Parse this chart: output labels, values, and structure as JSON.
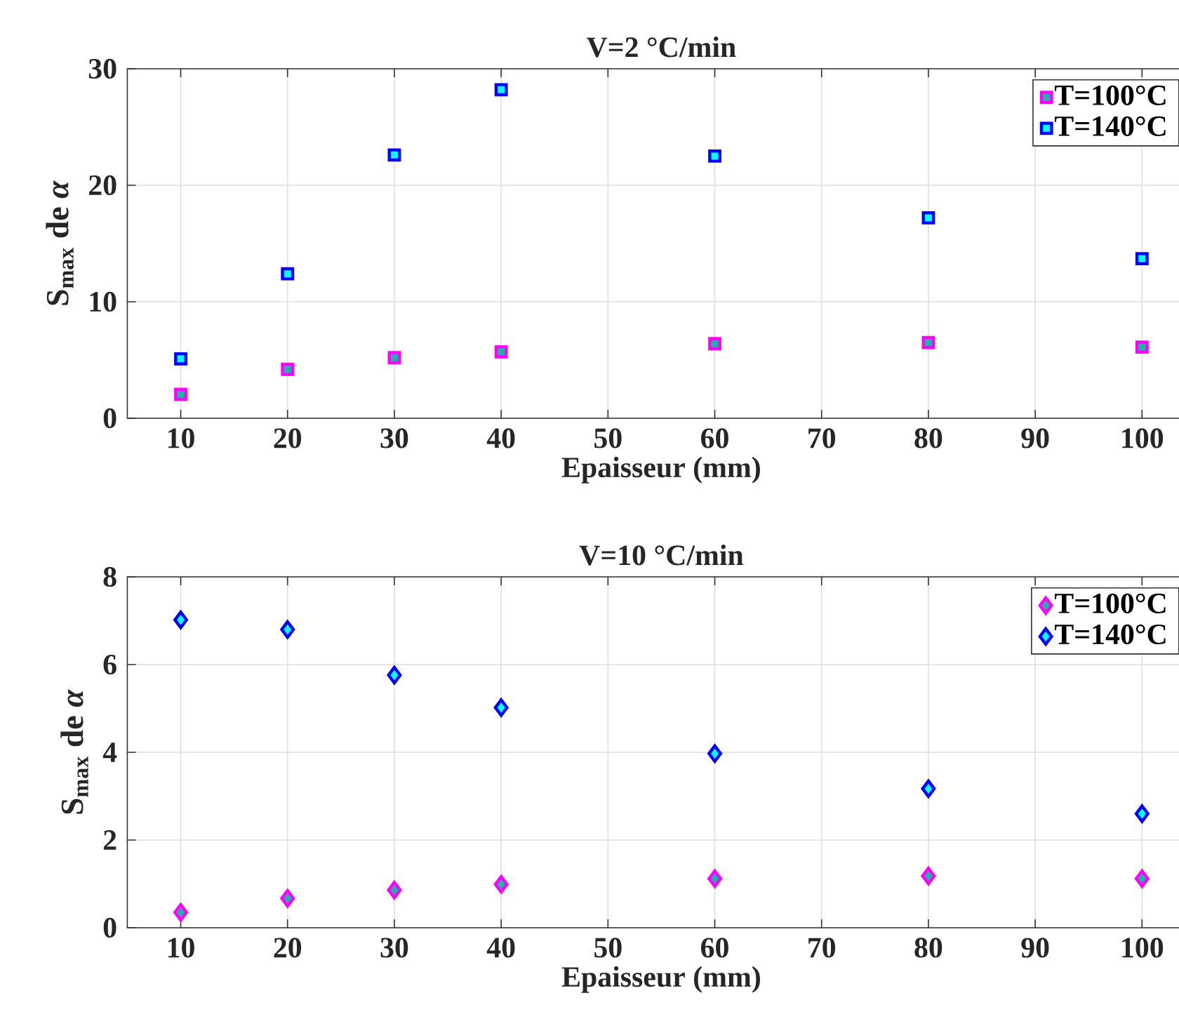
{
  "chart_data": [
    {
      "type": "scatter",
      "title": "V=2 °C/min",
      "xlabel": "Epaisseur (mm)",
      "ylabel": "S$_{max}$ de *α*",
      "x": [
        10,
        20,
        30,
        40,
        60,
        80,
        100
      ],
      "xlim": [
        5,
        105
      ],
      "xticks": [
        10,
        20,
        30,
        40,
        50,
        60,
        70,
        80,
        90,
        100
      ],
      "ylim": [
        0,
        30
      ],
      "yticks": [
        0,
        10,
        20,
        30
      ],
      "grid": true,
      "legend": "top right",
      "marker": "square",
      "series": [
        {
          "name": "T=100°C",
          "color": "#ff00ff",
          "values": [
            2.05,
            4.2,
            5.2,
            5.7,
            6.4,
            6.5,
            6.1
          ]
        },
        {
          "name": "T=140°C",
          "color": "#0000ff",
          "values": [
            5.1,
            12.4,
            22.6,
            28.2,
            22.5,
            17.2,
            13.7
          ]
        }
      ]
    },
    {
      "type": "scatter",
      "title": "V=10 °C/min",
      "xlabel": "Epaisseur (mm)",
      "ylabel": "S$_{max}$ de *α*",
      "x": [
        10,
        20,
        30,
        40,
        60,
        80,
        100
      ],
      "xlim": [
        5,
        105
      ],
      "xticks": [
        10,
        20,
        30,
        40,
        50,
        60,
        70,
        80,
        90,
        100
      ],
      "ylim": [
        0,
        8
      ],
      "yticks": [
        0,
        2,
        4,
        6,
        8
      ],
      "grid": true,
      "legend": "top right",
      "marker": "diamond",
      "series": [
        {
          "name": "T=100°C",
          "color": "#ff00ff",
          "values": [
            0.35,
            0.67,
            0.86,
            0.99,
            1.12,
            1.18,
            1.12
          ]
        },
        {
          "name": "T=140°C",
          "color": "#0000ff",
          "values": [
            7.02,
            6.8,
            5.76,
            5.02,
            3.97,
            3.17,
            2.6
          ]
        }
      ]
    }
  ]
}
